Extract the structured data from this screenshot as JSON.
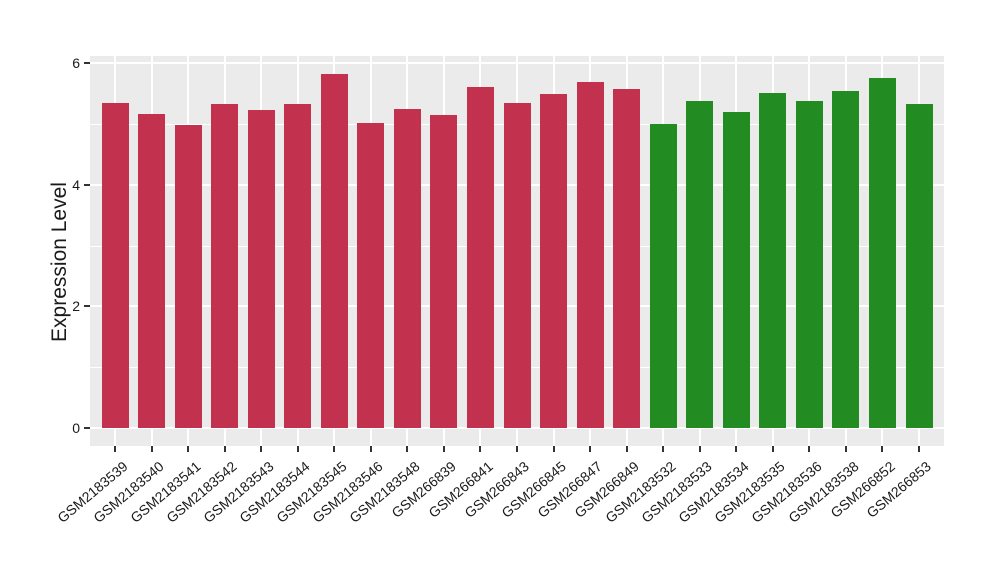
{
  "chart_data": {
    "type": "bar",
    "title": "",
    "xlabel": "",
    "ylabel": "Expression Level",
    "yticks": [
      0,
      2,
      4,
      6
    ],
    "yticks_minor": [
      1,
      3,
      5
    ],
    "ylim": [
      -0.28,
      6.12
    ],
    "grid": true,
    "legend": "none",
    "panel_bg": "#ebebeb",
    "grid_color": "#ffffff",
    "axis_text_color": "#1a1a1a",
    "categories": [
      "GSM2183539",
      "GSM2183540",
      "GSM2183541",
      "GSM2183542",
      "GSM2183543",
      "GSM2183544",
      "GSM2183545",
      "GSM2183546",
      "GSM2183548",
      "GSM266839",
      "GSM266841",
      "GSM266843",
      "GSM266845",
      "GSM266847",
      "GSM266849",
      "GSM2183532",
      "GSM2183533",
      "GSM2183534",
      "GSM2183535",
      "GSM2183536",
      "GSM2183538",
      "GSM266852",
      "GSM266853"
    ],
    "values": [
      5.35,
      5.17,
      4.98,
      5.33,
      5.22,
      5.33,
      5.82,
      5.01,
      5.24,
      5.15,
      5.61,
      5.35,
      5.49,
      5.69,
      5.58,
      5.0,
      5.38,
      5.2,
      5.51,
      5.38,
      5.54,
      5.75,
      5.33
    ],
    "groups": [
      "crimson",
      "crimson",
      "crimson",
      "crimson",
      "crimson",
      "crimson",
      "crimson",
      "crimson",
      "crimson",
      "crimson",
      "crimson",
      "crimson",
      "crimson",
      "crimson",
      "crimson",
      "green",
      "green",
      "green",
      "green",
      "green",
      "green",
      "green",
      "green"
    ],
    "group_colors": {
      "crimson": "#c2314d",
      "green": "#228b22"
    }
  }
}
